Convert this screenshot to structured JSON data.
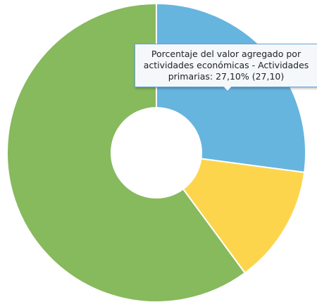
{
  "chart_data": {
    "type": "pie",
    "donut": true,
    "slices": [
      {
        "name": "Actividades primarias",
        "value": 27.1,
        "color": "#66b5df"
      },
      {
        "name": "",
        "value": 12.8,
        "color": "#fdd54d"
      },
      {
        "name": "",
        "value": 60.1,
        "color": "#87b95d"
      }
    ]
  },
  "tooltip": {
    "line1": "Porcentaje del valor agregado por",
    "line2": "actividades económicas - Actividades",
    "line3": "primarias: 27,10% (27,10)"
  }
}
